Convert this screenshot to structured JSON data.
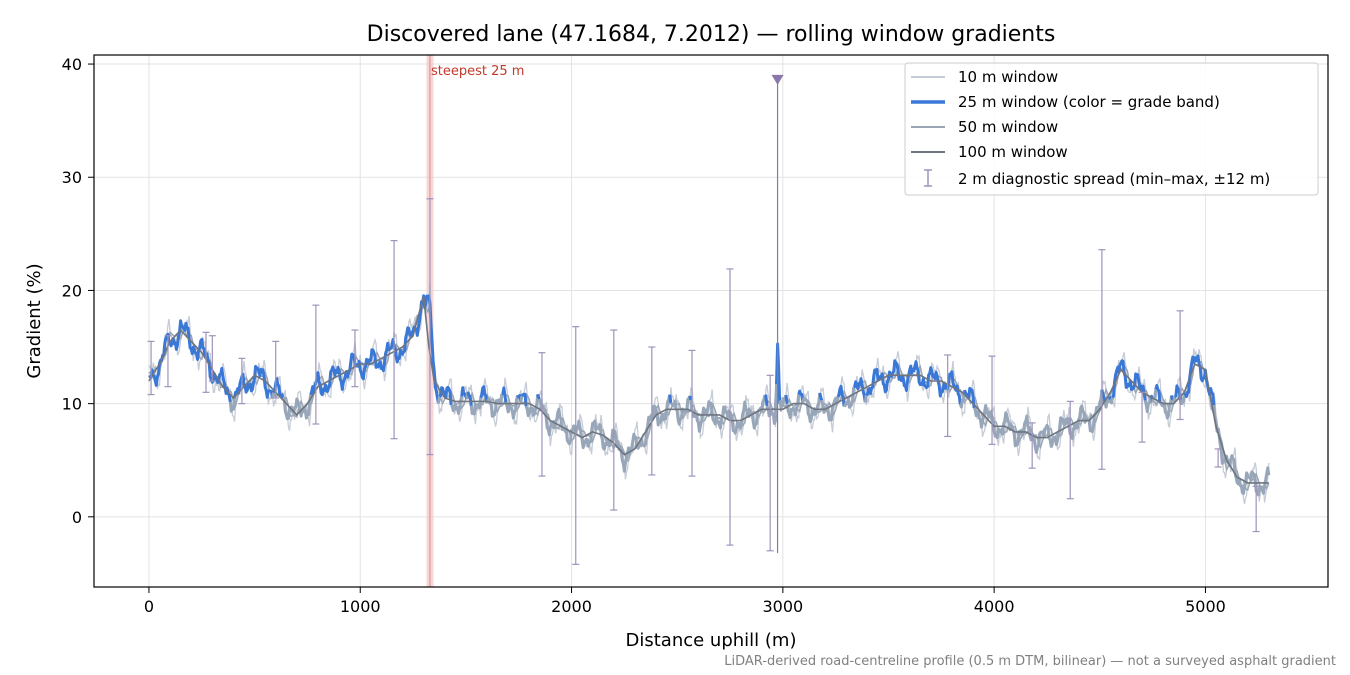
{
  "chart_data": {
    "type": "line",
    "title": "Discovered lane (47.1684, 7.2012) — rolling window gradients",
    "xlabel": "Distance uphill (m)",
    "ylabel": "Gradient (%)",
    "xlim": [
      -260,
      5580
    ],
    "ylim": [
      -6.2,
      40.8
    ],
    "x_ticks": [
      0,
      1000,
      2000,
      3000,
      4000,
      5000
    ],
    "y_ticks": [
      0,
      10,
      20,
      30,
      40
    ],
    "grid": true,
    "legend_position": "top-right",
    "legend": [
      "10 m window",
      "25 m window (color = grade band)",
      "50 m window",
      "100 m window",
      "2 m diagnostic spread (min–max, ±12 m)"
    ],
    "annotations": {
      "steepest_label": "steepest 25 m",
      "steepest_x": 1330,
      "marker_x": 2975,
      "marker_y": 38.6
    },
    "footnote": "LiDAR-derived road-centreline profile (0.5 m DTM, bilinear) — not a surveyed asphalt gradient",
    "colors": {
      "w10": "#c6ccd6",
      "w25_high": "#3a78d8",
      "w25_low": "#97a6b8",
      "w25_peak": "#d98c1f",
      "w50": "#9aa6b4",
      "w100": "#6e7480",
      "spread": "#9e93ba",
      "marker": "#8a78a8",
      "steep_band": "#f2c4c4",
      "steep_line": "#d98c8c",
      "annot_text": "#c0392b"
    },
    "series": [
      {
        "name": "100 m window",
        "x": [
          0,
          50,
          100,
          150,
          200,
          250,
          300,
          350,
          400,
          450,
          500,
          550,
          600,
          650,
          700,
          750,
          800,
          850,
          900,
          950,
          1000,
          1050,
          1100,
          1150,
          1200,
          1250,
          1300,
          1325,
          1350,
          1400,
          1450,
          1500,
          1550,
          1600,
          1650,
          1700,
          1750,
          1800,
          1850,
          1900,
          1950,
          2000,
          2050,
          2100,
          2150,
          2200,
          2250,
          2300,
          2350,
          2400,
          2450,
          2500,
          2550,
          2600,
          2650,
          2700,
          2750,
          2800,
          2850,
          2900,
          2950,
          3000,
          3050,
          3100,
          3150,
          3200,
          3250,
          3300,
          3350,
          3400,
          3450,
          3500,
          3550,
          3600,
          3650,
          3700,
          3750,
          3800,
          3850,
          3900,
          3950,
          4000,
          4050,
          4100,
          4150,
          4200,
          4250,
          4300,
          4350,
          4400,
          4450,
          4500,
          4550,
          4600,
          4650,
          4700,
          4750,
          4800,
          4850,
          4900,
          4950,
          5000,
          5050,
          5100,
          5150,
          5200,
          5250,
          5300
        ],
        "values": [
          12.0,
          13.5,
          15.5,
          16.5,
          15.5,
          14.5,
          13.0,
          11.5,
          10.5,
          11.5,
          12.5,
          12.0,
          11.0,
          10.0,
          9.0,
          10.0,
          11.5,
          12.0,
          12.5,
          13.0,
          13.5,
          13.5,
          14.0,
          14.5,
          15.0,
          16.0,
          19.5,
          15.0,
          12.0,
          10.5,
          10.2,
          10.2,
          10.2,
          10.2,
          10.0,
          10.0,
          10.0,
          10.0,
          9.5,
          8.5,
          8.0,
          7.5,
          7.0,
          7.5,
          7.2,
          6.5,
          5.5,
          6.0,
          7.5,
          9.0,
          9.5,
          9.5,
          9.5,
          9.0,
          9.0,
          9.0,
          8.5,
          8.5,
          9.0,
          9.5,
          9.5,
          9.5,
          10.0,
          10.0,
          9.5,
          9.5,
          10.0,
          10.5,
          11.0,
          11.5,
          12.0,
          12.5,
          12.5,
          12.5,
          12.5,
          12.0,
          12.0,
          11.5,
          11.0,
          10.0,
          9.0,
          8.0,
          8.0,
          7.5,
          7.5,
          7.0,
          7.0,
          7.5,
          8.0,
          8.5,
          8.5,
          9.5,
          11.0,
          13.0,
          12.0,
          11.0,
          10.5,
          10.0,
          10.0,
          11.0,
          13.5,
          13.0,
          8.0,
          5.0,
          3.5,
          3.0,
          3.0,
          3.0
        ]
      }
    ],
    "spread_bars": [
      {
        "x": 10,
        "min": 10.8,
        "max": 15.5
      },
      {
        "x": 90,
        "min": 11.5,
        "max": 16.0
      },
      {
        "x": 270,
        "min": 11.0,
        "max": 16.3
      },
      {
        "x": 300,
        "min": 12.0,
        "max": 16.0
      },
      {
        "x": 440,
        "min": 10.0,
        "max": 14.0
      },
      {
        "x": 600,
        "min": 10.5,
        "max": 15.5
      },
      {
        "x": 790,
        "min": 8.2,
        "max": 18.7
      },
      {
        "x": 975,
        "min": 11.5,
        "max": 16.5
      },
      {
        "x": 1160,
        "min": 6.9,
        "max": 24.4
      },
      {
        "x": 1330,
        "min": 5.5,
        "max": 28.1
      },
      {
        "x": 1860,
        "min": 3.6,
        "max": 14.5
      },
      {
        "x": 2020,
        "min": -4.2,
        "max": 16.8
      },
      {
        "x": 2200,
        "min": 0.6,
        "max": 16.5
      },
      {
        "x": 2380,
        "min": 3.7,
        "max": 15.0
      },
      {
        "x": 2570,
        "min": 3.6,
        "max": 14.7
      },
      {
        "x": 2750,
        "min": -2.5,
        "max": 21.9
      },
      {
        "x": 2940,
        "min": -3.0,
        "max": 12.5
      },
      {
        "x": 3780,
        "min": 7.1,
        "max": 14.3
      },
      {
        "x": 3990,
        "min": 6.4,
        "max": 14.2
      },
      {
        "x": 4180,
        "min": 4.3,
        "max": 8.3
      },
      {
        "x": 4360,
        "min": 1.6,
        "max": 10.2
      },
      {
        "x": 4510,
        "min": 4.2,
        "max": 23.6
      },
      {
        "x": 4700,
        "min": 6.6,
        "max": 11.0
      },
      {
        "x": 4880,
        "min": 8.6,
        "max": 18.2
      },
      {
        "x": 5060,
        "min": 4.4,
        "max": 6.0
      },
      {
        "x": 5240,
        "min": -1.3,
        "max": 2.7
      }
    ]
  }
}
